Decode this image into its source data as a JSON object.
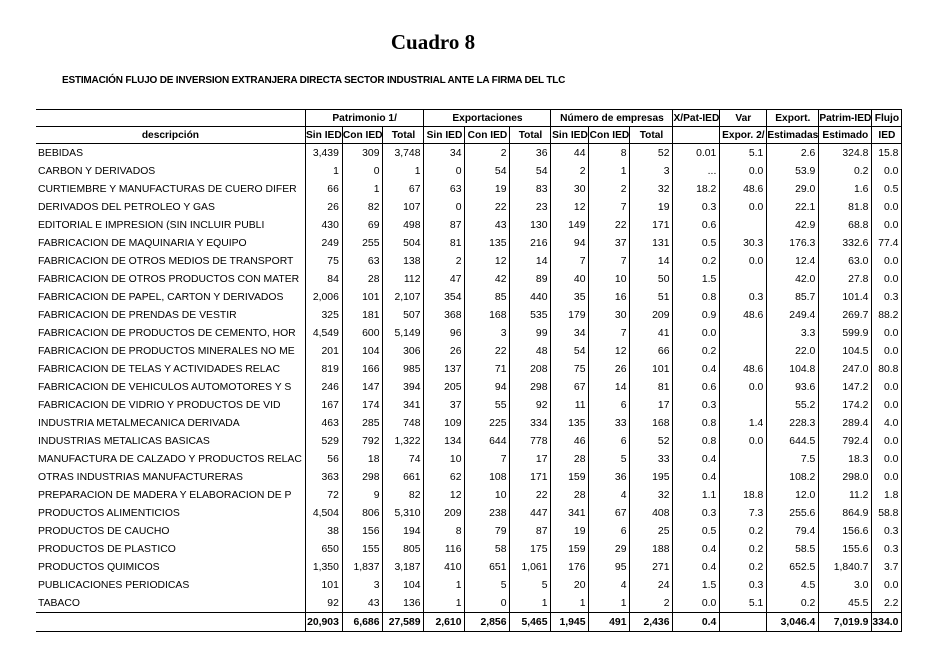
{
  "title": "Cuadro 8",
  "subtitle": "ESTIMACIÓN FLUJO DE INVERSION EXTRANJERA DIRECTA SECTOR INDUSTRIAL ANTE LA FIRMA DEL TLC",
  "header1": {
    "patrimonio": "Patrimonio 1/",
    "exportaciones": "Exportaciones",
    "empresas": "Número de empresas",
    "xpat": "X/Pat-IED",
    "var": "Var",
    "export": "Export.",
    "patrim": "Patrim-IED",
    "flujo": "Flujo"
  },
  "header2": {
    "descripcion": "descripción",
    "p_sin": "Sin IED",
    "p_con": "Con IED",
    "p_tot": "Total",
    "e_sin": "Sin IED",
    "e_con": "Con IED",
    "e_tot": "Total",
    "n_sin": "Sin IED",
    "n_con": "Con IED",
    "n_tot": "Total",
    "xpat": "",
    "var": "Expor. 2/",
    "export": "Estimadas",
    "patrim": "Estimado",
    "flujo": "IED"
  },
  "rows": [
    [
      "BEBIDAS",
      "3,439",
      "309",
      "3,748",
      "34",
      "2",
      "36",
      "44",
      "8",
      "52",
      "0.01",
      "5.1",
      "2.6",
      "324.8",
      "15.8"
    ],
    [
      "CARBON Y DERIVADOS",
      "1",
      "0",
      "1",
      "0",
      "54",
      "54",
      "2",
      "1",
      "3",
      "...",
      "0.0",
      "53.9",
      "0.2",
      "0.0"
    ],
    [
      "CURTIEMBRE Y MANUFACTURAS DE CUERO DIFER",
      "66",
      "1",
      "67",
      "63",
      "19",
      "83",
      "30",
      "2",
      "32",
      "18.2",
      "48.6",
      "29.0",
      "1.6",
      "0.5"
    ],
    [
      "DERIVADOS DEL PETROLEO Y GAS",
      "26",
      "82",
      "107",
      "0",
      "22",
      "23",
      "12",
      "7",
      "19",
      "0.3",
      "0.0",
      "22.1",
      "81.8",
      "0.0"
    ],
    [
      "EDITORIAL E IMPRESION (SIN INCLUIR PUBLI",
      "430",
      "69",
      "498",
      "87",
      "43",
      "130",
      "149",
      "22",
      "171",
      "0.6",
      "",
      "42.9",
      "68.8",
      "0.0"
    ],
    [
      "FABRICACION DE MAQUINARIA Y EQUIPO",
      "249",
      "255",
      "504",
      "81",
      "135",
      "216",
      "94",
      "37",
      "131",
      "0.5",
      "30.3",
      "176.3",
      "332.6",
      "77.4"
    ],
    [
      "FABRICACION DE OTROS MEDIOS DE TRANSPORT",
      "75",
      "63",
      "138",
      "2",
      "12",
      "14",
      "7",
      "7",
      "14",
      "0.2",
      "0.0",
      "12.4",
      "63.0",
      "0.0"
    ],
    [
      "FABRICACION DE OTROS PRODUCTOS CON MATER",
      "84",
      "28",
      "112",
      "47",
      "42",
      "89",
      "40",
      "10",
      "50",
      "1.5",
      "",
      "42.0",
      "27.8",
      "0.0"
    ],
    [
      "FABRICACION DE PAPEL, CARTON Y DERIVADOS",
      "2,006",
      "101",
      "2,107",
      "354",
      "85",
      "440",
      "35",
      "16",
      "51",
      "0.8",
      "0.3",
      "85.7",
      "101.4",
      "0.3"
    ],
    [
      "FABRICACION DE PRENDAS DE VESTIR",
      "325",
      "181",
      "507",
      "368",
      "168",
      "535",
      "179",
      "30",
      "209",
      "0.9",
      "48.6",
      "249.4",
      "269.7",
      "88.2"
    ],
    [
      "FABRICACION DE PRODUCTOS DE CEMENTO, HOR",
      "4,549",
      "600",
      "5,149",
      "96",
      "3",
      "99",
      "34",
      "7",
      "41",
      "0.0",
      "",
      "3.3",
      "599.9",
      "0.0"
    ],
    [
      "FABRICACION DE PRODUCTOS MINERALES NO ME",
      "201",
      "104",
      "306",
      "26",
      "22",
      "48",
      "54",
      "12",
      "66",
      "0.2",
      "",
      "22.0",
      "104.5",
      "0.0"
    ],
    [
      "FABRICACION DE TELAS Y ACTIVIDADES RELAC",
      "819",
      "166",
      "985",
      "137",
      "71",
      "208",
      "75",
      "26",
      "101",
      "0.4",
      "48.6",
      "104.8",
      "247.0",
      "80.8"
    ],
    [
      "FABRICACION DE VEHICULOS AUTOMOTORES Y S",
      "246",
      "147",
      "394",
      "205",
      "94",
      "298",
      "67",
      "14",
      "81",
      "0.6",
      "0.0",
      "93.6",
      "147.2",
      "0.0"
    ],
    [
      "FABRICACION DE VIDRIO Y PRODUCTOS DE VID",
      "167",
      "174",
      "341",
      "37",
      "55",
      "92",
      "11",
      "6",
      "17",
      "0.3",
      "",
      "55.2",
      "174.2",
      "0.0"
    ],
    [
      "INDUSTRIA METALMECANICA DERIVADA",
      "463",
      "285",
      "748",
      "109",
      "225",
      "334",
      "135",
      "33",
      "168",
      "0.8",
      "1.4",
      "228.3",
      "289.4",
      "4.0"
    ],
    [
      "INDUSTRIAS METALICAS BASICAS",
      "529",
      "792",
      "1,322",
      "134",
      "644",
      "778",
      "46",
      "6",
      "52",
      "0.8",
      "0.0",
      "644.5",
      "792.4",
      "0.0"
    ],
    [
      "MANUFACTURA DE CALZADO Y PRODUCTOS RELAC",
      "56",
      "18",
      "74",
      "10",
      "7",
      "17",
      "28",
      "5",
      "33",
      "0.4",
      "",
      "7.5",
      "18.3",
      "0.0"
    ],
    [
      "OTRAS INDUSTRIAS MANUFACTURERAS",
      "363",
      "298",
      "661",
      "62",
      "108",
      "171",
      "159",
      "36",
      "195",
      "0.4",
      "",
      "108.2",
      "298.0",
      "0.0"
    ],
    [
      "PREPARACION DE MADERA Y ELABORACION DE P",
      "72",
      "9",
      "82",
      "12",
      "10",
      "22",
      "28",
      "4",
      "32",
      "1.1",
      "18.8",
      "12.0",
      "11.2",
      "1.8"
    ],
    [
      "PRODUCTOS ALIMENTICIOS",
      "4,504",
      "806",
      "5,310",
      "209",
      "238",
      "447",
      "341",
      "67",
      "408",
      "0.3",
      "7.3",
      "255.6",
      "864.9",
      "58.8"
    ],
    [
      "PRODUCTOS DE CAUCHO",
      "38",
      "156",
      "194",
      "8",
      "79",
      "87",
      "19",
      "6",
      "25",
      "0.5",
      "0.2",
      "79.4",
      "156.6",
      "0.3"
    ],
    [
      "PRODUCTOS DE PLASTICO",
      "650",
      "155",
      "805",
      "116",
      "58",
      "175",
      "159",
      "29",
      "188",
      "0.4",
      "0.2",
      "58.5",
      "155.6",
      "0.3"
    ],
    [
      "PRODUCTOS QUIMICOS",
      "1,350",
      "1,837",
      "3,187",
      "410",
      "651",
      "1,061",
      "176",
      "95",
      "271",
      "0.4",
      "0.2",
      "652.5",
      "1,840.7",
      "3.7"
    ],
    [
      "PUBLICACIONES PERIODICAS",
      "101",
      "3",
      "104",
      "1",
      "5",
      "5",
      "20",
      "4",
      "24",
      "1.5",
      "0.3",
      "4.5",
      "3.0",
      "0.0"
    ],
    [
      "TABACO",
      "92",
      "43",
      "136",
      "1",
      "0",
      "1",
      "1",
      "1",
      "2",
      "0.0",
      "5.1",
      "0.2",
      "45.5",
      "2.2"
    ]
  ],
  "totals": [
    "",
    "20,903",
    "6,686",
    "27,589",
    "2,610",
    "2,856",
    "5,465",
    "1,945",
    "491",
    "2,436",
    "0.4",
    "",
    "3,046.4",
    "7,019.9",
    "334.0"
  ]
}
